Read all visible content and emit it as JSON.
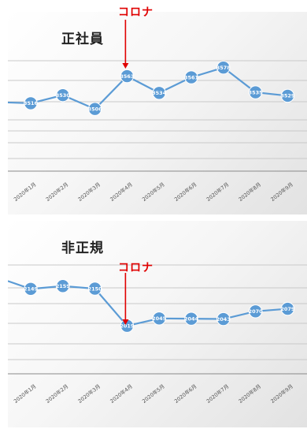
{
  "chart_data": [
    {
      "type": "line",
      "title": "正社員",
      "annotation": "コロナ",
      "annotation_category": "2020年4月",
      "categories": [
        "2020年1月",
        "2020年2月",
        "2020年3月",
        "2020年4月",
        "2020年5月",
        "2020年6月",
        "2020年7月",
        "2020年8月",
        "2020年9月"
      ],
      "values": [
        3516,
        3530,
        3506,
        3563,
        3534,
        3561,
        3578,
        3535,
        3529
      ],
      "ylim": [
        3420,
        3620
      ],
      "grid": true,
      "colors": {
        "series": "#5b9bd5",
        "annotation": "#e00000"
      }
    },
    {
      "type": "line",
      "title": "非正規",
      "annotation": "コロナ",
      "annotation_category": "2020年4月",
      "categories": [
        "2020年1月",
        "2020年2月",
        "2020年3月",
        "2020年4月",
        "2020年5月",
        "2020年6月",
        "2020年7月",
        "2020年8月",
        "2020年9月"
      ],
      "values": [
        2149,
        2159,
        2150,
        2019,
        2045,
        2044,
        2043,
        2070,
        2079
      ],
      "ylim": [
        1900,
        2250
      ],
      "grid": true,
      "colors": {
        "series": "#5b9bd5",
        "annotation": "#e00000"
      }
    }
  ]
}
